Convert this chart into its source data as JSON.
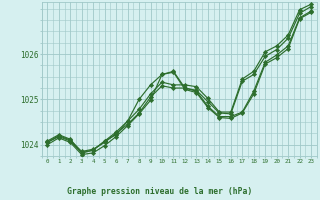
{
  "background_color": "#d6f0f0",
  "grid_color": "#a0c8c8",
  "line_color": "#2d6e2d",
  "marker_color": "#2d6e2d",
  "xlabel": "Graphe pression niveau de la mer (hPa)",
  "ylim": [
    1023.75,
    1027.15
  ],
  "xlim": [
    -0.5,
    23.5
  ],
  "yticks": [
    1024,
    1025,
    1026
  ],
  "xticks": [
    0,
    1,
    2,
    3,
    4,
    5,
    6,
    7,
    8,
    9,
    10,
    11,
    12,
    13,
    14,
    15,
    16,
    17,
    18,
    19,
    20,
    21,
    22,
    23
  ],
  "series": [
    [
      1024.05,
      1024.2,
      1024.1,
      1023.85,
      1023.9,
      1024.05,
      1024.25,
      1024.45,
      1024.7,
      1025.05,
      1025.3,
      1025.25,
      1025.25,
      1025.2,
      1024.95,
      1024.7,
      1024.68,
      1025.4,
      1025.55,
      1025.95,
      1026.1,
      1026.35,
      1026.9,
      1027.05
    ],
    [
      1024.0,
      1024.15,
      1024.05,
      1023.78,
      1023.82,
      1023.98,
      1024.18,
      1024.42,
      1024.68,
      1024.98,
      1025.55,
      1025.6,
      1025.22,
      1025.15,
      1024.82,
      1024.6,
      1024.58,
      1024.7,
      1025.12,
      1025.78,
      1025.92,
      1026.12,
      1026.78,
      1026.92
    ],
    [
      1024.08,
      1024.22,
      1024.12,
      1023.82,
      1023.88,
      1024.08,
      1024.28,
      1024.52,
      1024.78,
      1025.12,
      1025.38,
      1025.32,
      1025.32,
      1025.28,
      1025.02,
      1024.72,
      1024.72,
      1025.45,
      1025.62,
      1026.05,
      1026.18,
      1026.42,
      1026.98,
      1027.1
    ],
    [
      1024.05,
      1024.18,
      1024.08,
      1023.82,
      1023.88,
      1024.08,
      1024.22,
      1024.52,
      1025.0,
      1025.32,
      1025.55,
      1025.62,
      1025.25,
      1025.18,
      1024.85,
      1024.62,
      1024.62,
      1024.72,
      1025.18,
      1025.82,
      1025.98,
      1026.18,
      1026.8,
      1026.95
    ]
  ]
}
